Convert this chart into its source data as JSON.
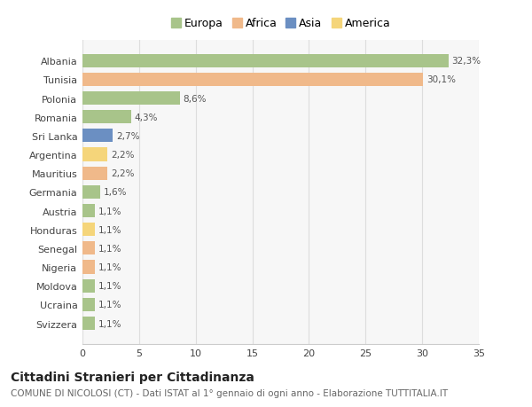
{
  "title": "Cittadini Stranieri per Cittadinanza",
  "subtitle": "COMUNE DI NICOLOSI (CT) - Dati ISTAT al 1° gennaio di ogni anno - Elaborazione TUTTITALIA.IT",
  "categories": [
    "Albania",
    "Tunisia",
    "Polonia",
    "Romania",
    "Sri Lanka",
    "Argentina",
    "Mauritius",
    "Germania",
    "Austria",
    "Honduras",
    "Senegal",
    "Nigeria",
    "Moldova",
    "Ucraina",
    "Svizzera"
  ],
  "values": [
    32.3,
    30.1,
    8.6,
    4.3,
    2.7,
    2.2,
    2.2,
    1.6,
    1.1,
    1.1,
    1.1,
    1.1,
    1.1,
    1.1,
    1.1
  ],
  "labels": [
    "32,3%",
    "30,1%",
    "8,6%",
    "4,3%",
    "2,7%",
    "2,2%",
    "2,2%",
    "1,6%",
    "1,1%",
    "1,1%",
    "1,1%",
    "1,1%",
    "1,1%",
    "1,1%",
    "1,1%"
  ],
  "colors": [
    "#a8c48a",
    "#f0b98a",
    "#a8c48a",
    "#a8c48a",
    "#6b8fc2",
    "#f5d57a",
    "#f0b98a",
    "#a8c48a",
    "#a8c48a",
    "#f5d57a",
    "#f0b98a",
    "#f0b98a",
    "#a8c48a",
    "#a8c48a",
    "#a8c48a"
  ],
  "legend": [
    {
      "label": "Europa",
      "color": "#a8c48a"
    },
    {
      "label": "Africa",
      "color": "#f0b98a"
    },
    {
      "label": "Asia",
      "color": "#6b8fc2"
    },
    {
      "label": "America",
      "color": "#f5d57a"
    }
  ],
  "xlim": [
    0,
    35
  ],
  "xticks": [
    0,
    5,
    10,
    15,
    20,
    25,
    30,
    35
  ],
  "background_color": "#ffffff",
  "grid_color": "#dddddd",
  "bar_height": 0.72,
  "title_fontsize": 10,
  "subtitle_fontsize": 7.5,
  "label_fontsize": 7.5,
  "tick_fontsize": 8,
  "legend_fontsize": 9
}
